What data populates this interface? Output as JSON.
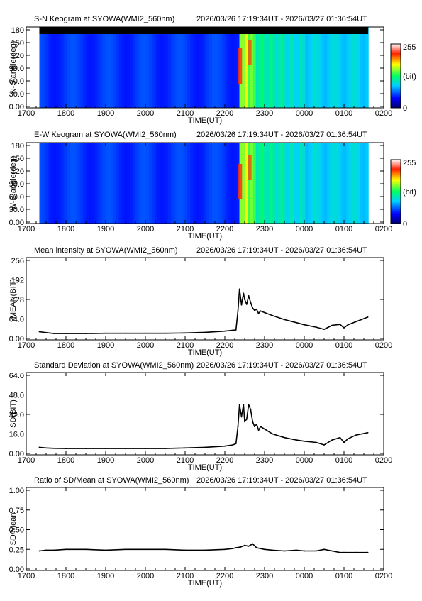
{
  "header_time_range": "2026/03/26 17:19:34UT - 2026/03/27 01:36:54UT",
  "x_ticks": [
    "1700",
    "1800",
    "1900",
    "2000",
    "2100",
    "2200",
    "2300",
    "0000",
    "0100",
    "0200"
  ],
  "x_label": "TIME(UT)",
  "colorbar": {
    "max_label": "255",
    "unit_label": "(bit)",
    "min_label": "0"
  },
  "keograms": [
    {
      "title": "S-N Keogram at SYOWA(WMI2_560nm)",
      "ylabel": "N-S angle(deg)",
      "y_ticks": [
        "0.00",
        "30.0",
        "60.0",
        "90.0",
        "120",
        "150",
        "180"
      ],
      "masked_top_band": true
    },
    {
      "title": "E-W Keogram at SYOWA(WMI2_560nm)",
      "ylabel": "W-E angle(deg)",
      "y_ticks": [
        "0.00",
        "30.0",
        "60.0",
        "90.0",
        "120",
        "150",
        "180"
      ],
      "masked_top_band": false
    }
  ],
  "chart_data": [
    {
      "type": "line",
      "title": "Mean intensity at SYOWA(WMI2_560nm)",
      "xlabel": "TIME(UT)",
      "ylabel": "MEAN(BIT)",
      "y_ticks": [
        "0.00",
        "64.0",
        "128",
        "192",
        "256"
      ],
      "ylim": [
        0,
        256
      ],
      "xlim": [
        17.0,
        26.0
      ],
      "x": [
        17.33,
        17.5,
        17.7,
        18.0,
        18.5,
        19.0,
        19.5,
        20.0,
        20.5,
        21.0,
        21.5,
        22.0,
        22.2,
        22.28,
        22.33,
        22.37,
        22.42,
        22.47,
        22.5,
        22.55,
        22.6,
        22.65,
        22.7,
        22.75,
        22.8,
        22.85,
        22.9,
        23.0,
        23.2,
        23.5,
        23.8,
        24.0,
        24.3,
        24.5,
        24.7,
        24.9,
        25.0,
        25.1,
        25.3,
        25.6
      ],
      "y": [
        22,
        19,
        16,
        16,
        16,
        17,
        17,
        17,
        17,
        18,
        20,
        24,
        27,
        28,
        90,
        162,
        110,
        148,
        128,
        112,
        140,
        118,
        100,
        92,
        96,
        82,
        90,
        85,
        75,
        62,
        52,
        45,
        37,
        30,
        43,
        46,
        35,
        45,
        55,
        70
      ]
    },
    {
      "type": "line",
      "title": "Standard Deviation at SYOWA(WMI2_560nm)",
      "xlabel": "TIME(UT)",
      "ylabel": "SD(BIT)",
      "y_ticks": [
        "0.00",
        "16.0",
        "32.0",
        "48.0",
        "64.0"
      ],
      "ylim": [
        0,
        64
      ],
      "xlim": [
        17.0,
        26.0
      ],
      "x": [
        17.33,
        17.5,
        17.7,
        18.0,
        18.5,
        19.0,
        19.5,
        20.0,
        20.5,
        21.0,
        21.5,
        22.0,
        22.2,
        22.28,
        22.33,
        22.37,
        22.42,
        22.47,
        22.5,
        22.55,
        22.6,
        22.65,
        22.7,
        22.75,
        22.8,
        22.85,
        22.9,
        23.0,
        23.2,
        23.5,
        23.8,
        24.0,
        24.3,
        24.5,
        24.7,
        24.9,
        25.0,
        25.1,
        25.3,
        25.6
      ],
      "y": [
        5,
        4.5,
        4.2,
        4,
        4,
        4,
        4,
        4,
        4,
        4.5,
        5,
        6,
        7,
        8,
        22,
        40,
        30,
        40,
        26,
        28,
        40,
        36,
        26,
        22,
        24,
        19,
        22,
        20,
        16,
        13,
        11,
        10,
        9,
        7,
        11,
        13,
        9,
        12,
        15,
        17
      ]
    },
    {
      "type": "line",
      "title": "Ratio of SD/Mean at SYOWA(WMI2_560nm)",
      "xlabel": "TIME(UT)",
      "ylabel": "SD/Mean",
      "y_ticks": [
        "0.00",
        "0.25",
        "0.50",
        "0.75",
        "1.00"
      ],
      "ylim": [
        0,
        1
      ],
      "xlim": [
        17.0,
        26.0
      ],
      "x": [
        17.33,
        17.5,
        17.7,
        18.0,
        18.5,
        19.0,
        19.5,
        20.0,
        20.5,
        21.0,
        21.5,
        22.0,
        22.2,
        22.28,
        22.4,
        22.5,
        22.6,
        22.7,
        22.8,
        23.0,
        23.2,
        23.5,
        23.8,
        24.0,
        24.3,
        24.5,
        24.7,
        24.9,
        25.0,
        25.1,
        25.3,
        25.6
      ],
      "y": [
        0.23,
        0.24,
        0.24,
        0.25,
        0.25,
        0.24,
        0.25,
        0.25,
        0.25,
        0.24,
        0.24,
        0.25,
        0.26,
        0.27,
        0.28,
        0.3,
        0.29,
        0.32,
        0.27,
        0.25,
        0.24,
        0.23,
        0.24,
        0.23,
        0.23,
        0.25,
        0.23,
        0.21,
        0.21,
        0.21,
        0.21,
        0.21
      ]
    }
  ]
}
